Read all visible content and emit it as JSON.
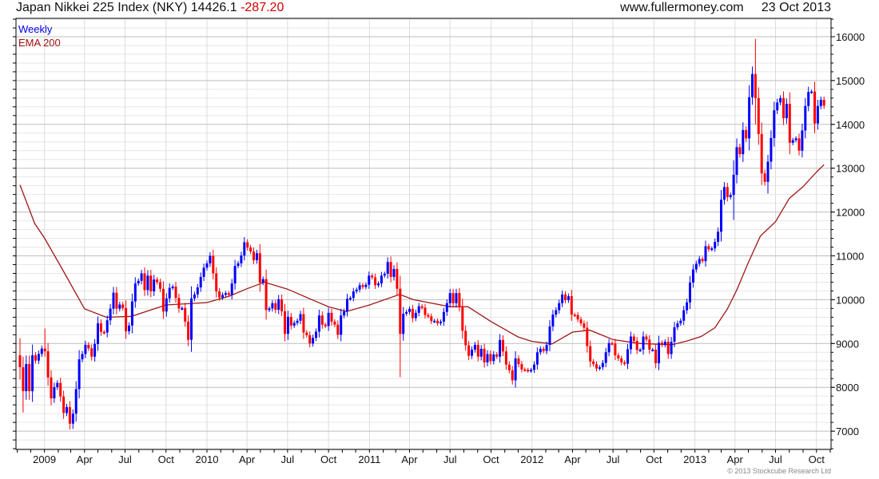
{
  "header": {
    "title": "Japan Nikkei 225 Index (NKY)",
    "last": "14426.1",
    "change": "-287.20",
    "site": "www.fullermoney.com",
    "date": "23 Oct 2013"
  },
  "legend": {
    "series": "Weekly",
    "ema": "EMA 200"
  },
  "copyright": "© 2013 Stockcube Research Ltd",
  "colors": {
    "up": "#0000ff",
    "down": "#ff0000",
    "ema": "#a01818",
    "grid_major": "#bdbdbd",
    "grid_minor": "#e6e6e6"
  },
  "chart_data": {
    "type": "candlestick",
    "title": "Japan Nikkei 225 Index (NKY)",
    "frequency": "weekly",
    "first_week": "2008-11-07",
    "first_open": 8732,
    "ylim": [
      6583,
      16420
    ],
    "yticks": [
      "7000",
      "8000",
      "9000",
      "10000",
      "11000",
      "12000",
      "13000",
      "14000",
      "15000",
      "16000"
    ],
    "xticks": [
      {
        "label": "2009",
        "date": "2009-01-01"
      },
      {
        "label": "Apr",
        "date": "2009-04-01"
      },
      {
        "label": "Jul",
        "date": "2009-07-01"
      },
      {
        "label": "Oct",
        "date": "2009-10-01"
      },
      {
        "label": "2010",
        "date": "2010-01-01"
      },
      {
        "label": "Apr",
        "date": "2010-04-01"
      },
      {
        "label": "Jul",
        "date": "2010-07-01"
      },
      {
        "label": "Oct",
        "date": "2010-10-01"
      },
      {
        "label": "2011",
        "date": "2011-01-01"
      },
      {
        "label": "Apr",
        "date": "2011-04-01"
      },
      {
        "label": "Jul",
        "date": "2011-07-01"
      },
      {
        "label": "Oct",
        "date": "2011-10-01"
      },
      {
        "label": "2012",
        "date": "2012-01-01"
      },
      {
        "label": "Apr",
        "date": "2012-04-01"
      },
      {
        "label": "Jul",
        "date": "2012-07-01"
      },
      {
        "label": "Oct",
        "date": "2012-10-01"
      },
      {
        "label": "2013",
        "date": "2013-01-01"
      },
      {
        "label": "Apr",
        "date": "2013-04-01"
      },
      {
        "label": "Jul",
        "date": "2013-07-01"
      },
      {
        "label": "Oct",
        "date": "2013-10-01"
      }
    ],
    "closes": [
      8459,
      7913,
      8532,
      7913,
      8732,
      8611,
      8763,
      8884,
      8823,
      8228,
      7749,
      8004,
      8100,
      7790,
      7415,
      7550,
      7172,
      7400,
      7960,
      8640,
      8760,
      8970,
      8890,
      8700,
      8990,
      9460,
      9265,
      9250,
      9530,
      9795,
      10160,
      9795,
      9890,
      9810,
      9280,
      9410,
      9960,
      10370,
      10430,
      10600,
      10220,
      10550,
      10190,
      10460,
      10400,
      10250,
      9730,
      10030,
      10270,
      10300,
      10040,
      9800,
      9810,
      9500,
      9085,
      10030,
      10120,
      10280,
      10520,
      10730,
      10830,
      11000,
      10600,
      10190,
      10050,
      10110,
      10150,
      10110,
      10370,
      10770,
      10830,
      11010,
      11310,
      11190,
      11100,
      10900,
      11060,
      10390,
      10470,
      9765,
      9800,
      9920,
      9770,
      10010,
      9735,
      9220,
      9610,
      9410,
      9470,
      9520,
      9670,
      9250,
      9190,
      9000,
      9130,
      9270,
      9640,
      9430,
      9400,
      9700,
      9500,
      9430,
      9200,
      9640,
      9730,
      10020,
      10040,
      10190,
      10230,
      10330,
      10290,
      10340,
      10550,
      10510,
      10330,
      10370,
      10550,
      10590,
      10860,
      10520,
      10700,
      10250,
      9220,
      9680,
      9720,
      9790,
      9580,
      9700,
      9850,
      9820,
      9650,
      9620,
      9510,
      9520,
      9460,
      9500,
      9720,
      9920,
      10150,
      9920,
      10150,
      9845,
      9290,
      8960,
      8720,
      8860,
      8970,
      8700,
      8880,
      8570,
      8760,
      8600,
      8750,
      8700,
      9080,
      8820,
      8520,
      8390,
      8160,
      8660,
      8530,
      8410,
      8400,
      8380,
      8400,
      8520,
      8800,
      8880,
      8830,
      8970,
      9390,
      9660,
      9760,
      9920,
      10120,
      9990,
      10080,
      9660,
      9650,
      9550,
      9460,
      9360,
      8940,
      8590,
      8530,
      8430,
      8460,
      8560,
      8800,
      9010,
      9000,
      8730,
      8660,
      8570,
      8540,
      8870,
      9160,
      9060,
      8850,
      8860,
      9160,
      9090,
      8860,
      8860,
      8550,
      9020,
      8970,
      9040,
      8760,
      9040,
      9370,
      9460,
      9520,
      9760,
      9940,
      10390,
      10690,
      10820,
      10930,
      10880,
      11220,
      11150,
      11170,
      11320,
      11550,
      12280,
      12570,
      12340,
      12390,
      12850,
      13480,
      13320,
      13870,
      13680,
      14620,
      15150,
      14600,
      13780,
      12880,
      12690,
      13150,
      13690,
      14320,
      14500,
      14600,
      14140,
      14470,
      13580,
      13640,
      13680,
      13400,
      13860,
      14420,
      14740,
      14750,
      14020,
      14420,
      14560,
      14426.1
    ],
    "extremes": [
      {
        "week": 0,
        "high": 9120,
        "low": 8180
      },
      {
        "week": 1,
        "high": 8700,
        "low": 7427
      },
      {
        "week": 8,
        "high": 9340,
        "low": 8700
      },
      {
        "week": 17,
        "high": 7420,
        "low": 7050
      },
      {
        "week": 122,
        "high": 10300,
        "low": 8230
      },
      {
        "week": 229,
        "high": 13180,
        "low": 11820
      },
      {
        "week": 236,
        "high": 15950,
        "low": 14000
      },
      {
        "week": 240,
        "high": 13300,
        "low": 12420
      }
    ],
    "ema": [
      {
        "date": "2008-11-07",
        "value": 12620
      },
      {
        "date": "2008-12-10",
        "value": 11740
      },
      {
        "date": "2009-01-01",
        "value": 11410
      },
      {
        "date": "2009-02-10",
        "value": 10700
      },
      {
        "date": "2009-04-01",
        "value": 9790
      },
      {
        "date": "2009-05-20",
        "value": 9600
      },
      {
        "date": "2009-07-15",
        "value": 9620
      },
      {
        "date": "2009-10-01",
        "value": 9880
      },
      {
        "date": "2010-01-01",
        "value": 9935
      },
      {
        "date": "2010-02-20",
        "value": 10080
      },
      {
        "date": "2010-04-01",
        "value": 10250
      },
      {
        "date": "2010-05-10",
        "value": 10400
      },
      {
        "date": "2010-07-01",
        "value": 10240
      },
      {
        "date": "2010-08-20",
        "value": 10020
      },
      {
        "date": "2010-10-01",
        "value": 9840
      },
      {
        "date": "2010-11-10",
        "value": 9730
      },
      {
        "date": "2011-01-01",
        "value": 9880
      },
      {
        "date": "2011-03-10",
        "value": 10120
      },
      {
        "date": "2011-04-10",
        "value": 10000
      },
      {
        "date": "2011-07-01",
        "value": 9840
      },
      {
        "date": "2011-08-10",
        "value": 9840
      },
      {
        "date": "2011-10-01",
        "value": 9500
      },
      {
        "date": "2011-12-01",
        "value": 9150
      },
      {
        "date": "2012-01-01",
        "value": 9050
      },
      {
        "date": "2012-02-15",
        "value": 8990
      },
      {
        "date": "2012-04-01",
        "value": 9260
      },
      {
        "date": "2012-05-10",
        "value": 9305
      },
      {
        "date": "2012-07-01",
        "value": 9090
      },
      {
        "date": "2012-09-01",
        "value": 9000
      },
      {
        "date": "2012-11-10",
        "value": 8970
      },
      {
        "date": "2012-12-15",
        "value": 9060
      },
      {
        "date": "2013-01-15",
        "value": 9160
      },
      {
        "date": "2013-02-15",
        "value": 9360
      },
      {
        "date": "2013-03-15",
        "value": 9790
      },
      {
        "date": "2013-04-05",
        "value": 10220
      },
      {
        "date": "2013-05-01",
        "value": 10850
      },
      {
        "date": "2013-05-28",
        "value": 11450
      },
      {
        "date": "2013-07-01",
        "value": 11780
      },
      {
        "date": "2013-08-01",
        "value": 12310
      },
      {
        "date": "2013-09-01",
        "value": 12580
      },
      {
        "date": "2013-10-01",
        "value": 12910
      },
      {
        "date": "2013-10-18",
        "value": 13080
      }
    ]
  }
}
